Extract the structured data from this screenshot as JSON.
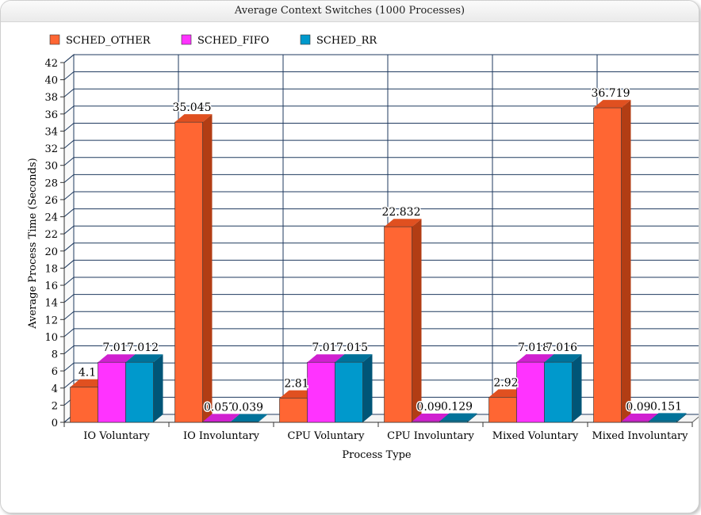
{
  "window": {
    "title": "Average Context Switches (1000 Processes)"
  },
  "chart_data": {
    "type": "bar",
    "title": "Average Context Switches (1000 Processes)",
    "xlabel": "Process Type",
    "ylabel": "Average Process  Time (Seconds)",
    "categories": [
      "IO Voluntary",
      "IO Involuntary",
      "CPU Voluntary",
      "CPU Involuntary",
      "Mixed Voluntary",
      "Mixed Involuntary"
    ],
    "series": [
      {
        "name": "SCHED_OTHER",
        "color": "#ff6633",
        "side": "#b23d14",
        "top": "#e05020",
        "values": [
          4.1,
          35.045,
          2.81,
          22.832,
          2.92,
          36.719
        ],
        "labels": [
          "4.1",
          "35.045",
          "2.81",
          "22.832",
          "2.92",
          "36.719"
        ]
      },
      {
        "name": "SCHED_FIFO",
        "color": "#ff33ff",
        "side": "#a01fa0",
        "top": "#d020d0",
        "values": [
          7.01,
          0.057,
          7.01,
          0.09,
          7.018,
          0.09
        ],
        "labels": [
          "7.01",
          "0.057",
          "7.01",
          "0.09",
          "7.018",
          "0.09"
        ]
      },
      {
        "name": "SCHED_RR",
        "color": "#0099cc",
        "side": "#005577",
        "top": "#00729a",
        "values": [
          7.012,
          0.039,
          7.015,
          0.129,
          7.016,
          0.151
        ],
        "labels": [
          "7.012",
          "0.039",
          "7.015",
          "0.129",
          "7.016",
          "0.151"
        ]
      }
    ],
    "ylim": [
      0,
      42
    ],
    "ytick_step": 2,
    "grid": true,
    "legend": "top-left"
  }
}
